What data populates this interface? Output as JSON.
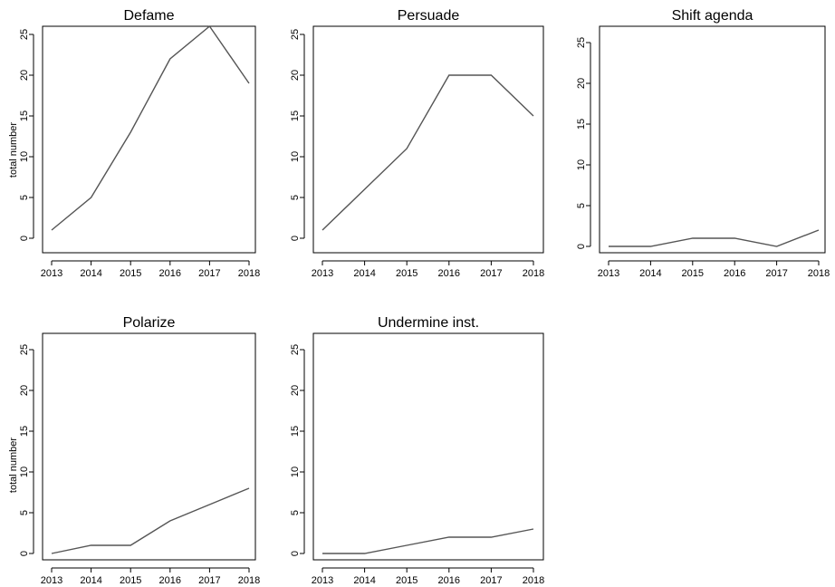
{
  "chart_data": [
    {
      "type": "line",
      "title": "Defame",
      "ylabel": "total number",
      "x": [
        2013,
        2014,
        2015,
        2016,
        2017,
        2018
      ],
      "values": [
        1,
        5,
        13,
        22,
        26,
        19
      ],
      "ylim": [
        0,
        25
      ],
      "yticks": [
        0,
        5,
        10,
        15,
        20,
        25
      ],
      "color": "#555555"
    },
    {
      "type": "line",
      "title": "Persuade",
      "ylabel": "",
      "x": [
        2013,
        2014,
        2015,
        2016,
        2017,
        2018
      ],
      "values": [
        1,
        6,
        11,
        20,
        20,
        15
      ],
      "ylim": [
        0,
        25
      ],
      "yticks": [
        0,
        5,
        10,
        15,
        20,
        25
      ],
      "color": "#555555"
    },
    {
      "type": "line",
      "title": "Shift agenda",
      "ylabel": "",
      "x": [
        2013,
        2014,
        2015,
        2016,
        2017,
        2018
      ],
      "values": [
        0,
        0,
        1,
        1,
        0,
        2
      ],
      "ylim": [
        0,
        25
      ],
      "yticks": [
        0,
        5,
        10,
        15,
        20,
        25
      ],
      "color": "#555555"
    },
    {
      "type": "line",
      "title": "Polarize",
      "ylabel": "total number",
      "x": [
        2013,
        2014,
        2015,
        2016,
        2017,
        2018
      ],
      "values": [
        0,
        1,
        1,
        4,
        6,
        8
      ],
      "ylim": [
        0,
        25
      ],
      "yticks": [
        0,
        5,
        10,
        15,
        20,
        25
      ],
      "color": "#555555"
    },
    {
      "type": "line",
      "title": "Undermine inst.",
      "ylabel": "",
      "x": [
        2013,
        2014,
        2015,
        2016,
        2017,
        2018
      ],
      "values": [
        0,
        0,
        1,
        2,
        2,
        3
      ],
      "ylim": [
        0,
        25
      ],
      "yticks": [
        0,
        5,
        10,
        15,
        20,
        25
      ],
      "color": "#555555"
    }
  ]
}
